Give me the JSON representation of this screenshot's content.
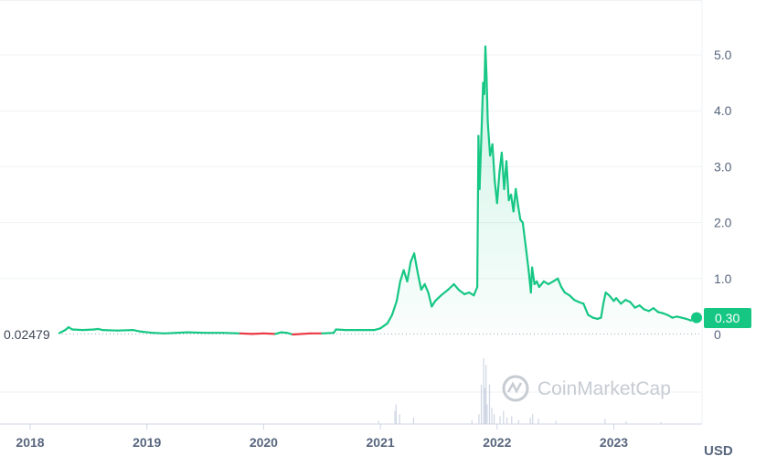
{
  "chart_data": {
    "type": "area",
    "title": "",
    "currency": "USD",
    "reference_value": "0.02479",
    "current_price_label": "0.30",
    "watermark": "CoinMarketCap",
    "x_ticks": [
      "2018",
      "2019",
      "2020",
      "2021",
      "2022",
      "2023"
    ],
    "y_ticks": [
      "0",
      "1.0",
      "2.0",
      "3.0",
      "4.0",
      "5.0"
    ],
    "ylim": [
      0,
      5.8
    ],
    "xlim": [
      2017.99,
      2023.7
    ],
    "grid": true,
    "colors": {
      "up": "#16c784",
      "down": "#ea3943",
      "axis_text": "#58667e",
      "grid": "#eff2f5",
      "volume": "#cfd6e4"
    },
    "series": [
      {
        "values": [
          [
            2018.25,
            0.025
          ],
          [
            2018.3,
            0.08
          ],
          [
            2018.33,
            0.13
          ],
          [
            2018.36,
            0.09
          ],
          [
            2018.45,
            0.08
          ],
          [
            2018.55,
            0.09
          ],
          [
            2018.58,
            0.1
          ],
          [
            2018.62,
            0.08
          ],
          [
            2018.75,
            0.07
          ],
          [
            2018.88,
            0.08
          ],
          [
            2018.95,
            0.05
          ],
          [
            2019.05,
            0.03
          ],
          [
            2019.15,
            0.02
          ],
          [
            2019.25,
            0.03
          ],
          [
            2019.35,
            0.04
          ],
          [
            2019.5,
            0.03
          ],
          [
            2019.65,
            0.03
          ],
          [
            2019.8,
            0.02
          ],
          [
            2019.9,
            0.01
          ],
          [
            2020.0,
            0.02
          ],
          [
            2020.1,
            0.01
          ],
          [
            2020.15,
            0.04
          ],
          [
            2020.2,
            0.03
          ],
          [
            2020.25,
            0.0
          ],
          [
            2020.4,
            0.02
          ],
          [
            2020.5,
            0.02
          ],
          [
            2020.6,
            0.03
          ],
          [
            2020.62,
            0.09
          ],
          [
            2020.7,
            0.08
          ],
          [
            2020.85,
            0.08
          ],
          [
            2020.95,
            0.08
          ],
          [
            2021.0,
            0.11
          ],
          [
            2021.06,
            0.2
          ],
          [
            2021.1,
            0.35
          ],
          [
            2021.14,
            0.6
          ],
          [
            2021.17,
            0.95
          ],
          [
            2021.2,
            1.15
          ],
          [
            2021.23,
            0.95
          ],
          [
            2021.26,
            1.3
          ],
          [
            2021.29,
            1.45
          ],
          [
            2021.32,
            1.1
          ],
          [
            2021.35,
            0.8
          ],
          [
            2021.38,
            0.9
          ],
          [
            2021.41,
            0.75
          ],
          [
            2021.44,
            0.5
          ],
          [
            2021.47,
            0.6
          ],
          [
            2021.52,
            0.7
          ],
          [
            2021.58,
            0.8
          ],
          [
            2021.63,
            0.9
          ],
          [
            2021.67,
            0.8
          ],
          [
            2021.72,
            0.72
          ],
          [
            2021.76,
            0.75
          ],
          [
            2021.8,
            0.7
          ],
          [
            2021.83,
            0.85
          ],
          [
            2021.84,
            3.55
          ],
          [
            2021.85,
            2.6
          ],
          [
            2021.86,
            3.2
          ],
          [
            2021.88,
            4.5
          ],
          [
            2021.89,
            4.3
          ],
          [
            2021.9,
            5.15
          ],
          [
            2021.91,
            4.6
          ],
          [
            2021.92,
            3.8
          ],
          [
            2021.94,
            3.2
          ],
          [
            2021.96,
            3.4
          ],
          [
            2021.98,
            2.75
          ],
          [
            2022.0,
            2.35
          ],
          [
            2022.02,
            2.9
          ],
          [
            2022.04,
            3.25
          ],
          [
            2022.06,
            2.6
          ],
          [
            2022.08,
            3.1
          ],
          [
            2022.1,
            2.4
          ],
          [
            2022.12,
            2.5
          ],
          [
            2022.14,
            2.2
          ],
          [
            2022.16,
            2.6
          ],
          [
            2022.18,
            2.3
          ],
          [
            2022.2,
            2.05
          ],
          [
            2022.22,
            2.0
          ],
          [
            2022.25,
            1.5
          ],
          [
            2022.27,
            1.15
          ],
          [
            2022.29,
            0.75
          ],
          [
            2022.3,
            1.2
          ],
          [
            2022.32,
            0.9
          ],
          [
            2022.34,
            0.95
          ],
          [
            2022.36,
            0.85
          ],
          [
            2022.4,
            0.95
          ],
          [
            2022.44,
            0.9
          ],
          [
            2022.48,
            0.95
          ],
          [
            2022.52,
            1.0
          ],
          [
            2022.55,
            0.85
          ],
          [
            2022.58,
            0.75
          ],
          [
            2022.62,
            0.7
          ],
          [
            2022.66,
            0.62
          ],
          [
            2022.7,
            0.58
          ],
          [
            2022.74,
            0.55
          ],
          [
            2022.78,
            0.35
          ],
          [
            2022.82,
            0.3
          ],
          [
            2022.86,
            0.28
          ],
          [
            2022.89,
            0.3
          ],
          [
            2022.91,
            0.55
          ],
          [
            2022.93,
            0.75
          ],
          [
            2022.96,
            0.7
          ],
          [
            2023.0,
            0.6
          ],
          [
            2023.02,
            0.65
          ],
          [
            2023.06,
            0.55
          ],
          [
            2023.1,
            0.62
          ],
          [
            2023.14,
            0.58
          ],
          [
            2023.18,
            0.48
          ],
          [
            2023.22,
            0.52
          ],
          [
            2023.26,
            0.45
          ],
          [
            2023.3,
            0.42
          ],
          [
            2023.34,
            0.47
          ],
          [
            2023.38,
            0.4
          ],
          [
            2023.42,
            0.38
          ],
          [
            2023.46,
            0.35
          ],
          [
            2023.5,
            0.3
          ],
          [
            2023.54,
            0.32
          ],
          [
            2023.58,
            0.3
          ],
          [
            2023.62,
            0.28
          ],
          [
            2023.66,
            0.25
          ],
          [
            2023.7,
            0.3
          ]
        ]
      }
    ],
    "volume": [
      [
        2020.98,
        0.05
      ],
      [
        2021.12,
        0.2
      ],
      [
        2021.13,
        0.3
      ],
      [
        2021.16,
        0.15
      ],
      [
        2021.28,
        0.1
      ],
      [
        2021.78,
        0.06
      ],
      [
        2021.84,
        0.15
      ],
      [
        2021.86,
        0.6
      ],
      [
        2021.88,
        1.0
      ],
      [
        2021.89,
        0.55
      ],
      [
        2021.9,
        0.9
      ],
      [
        2021.91,
        0.3
      ],
      [
        2021.93,
        0.6
      ],
      [
        2021.95,
        0.25
      ],
      [
        2021.97,
        0.15
      ],
      [
        2022.02,
        0.12
      ],
      [
        2022.05,
        0.2
      ],
      [
        2022.08,
        0.1
      ],
      [
        2022.12,
        0.12
      ],
      [
        2022.18,
        0.06
      ],
      [
        2022.28,
        0.1
      ],
      [
        2022.3,
        0.15
      ],
      [
        2022.35,
        0.08
      ],
      [
        2022.5,
        0.05
      ],
      [
        2022.92,
        0.08
      ],
      [
        2023.1,
        0.04
      ],
      [
        2023.4,
        0.03
      ]
    ]
  }
}
